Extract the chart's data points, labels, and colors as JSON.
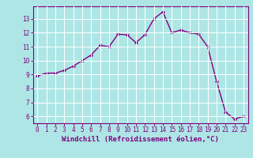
{
  "x": [
    0,
    1,
    2,
    3,
    4,
    5,
    6,
    7,
    8,
    9,
    10,
    11,
    12,
    13,
    14,
    15,
    16,
    17,
    18,
    19,
    20,
    21,
    22,
    23
  ],
  "y": [
    8.9,
    9.1,
    9.1,
    9.3,
    9.6,
    10.0,
    10.4,
    11.1,
    11.0,
    11.9,
    11.85,
    11.3,
    11.85,
    13.0,
    13.5,
    12.0,
    12.2,
    12.0,
    11.9,
    11.0,
    8.5,
    6.3,
    5.8,
    6.0
  ],
  "line_color": "#7f007f",
  "marker": "D",
  "marker_size": 2.0,
  "bg_color": "#aee6e6",
  "grid_color": "#ffffff",
  "xlabel": "Windchill (Refroidissement éolien,°C)",
  "xlabel_color": "#7f007f",
  "tick_color": "#7f007f",
  "spine_color": "#7f007f",
  "ylim": [
    5.5,
    13.9
  ],
  "xlim": [
    -0.5,
    23.5
  ],
  "yticks": [
    6,
    7,
    8,
    9,
    10,
    11,
    12,
    13
  ],
  "xticks": [
    0,
    1,
    2,
    3,
    4,
    5,
    6,
    7,
    8,
    9,
    10,
    11,
    12,
    13,
    14,
    15,
    16,
    17,
    18,
    19,
    20,
    21,
    22,
    23
  ],
  "tick_fontsize": 5.5,
  "xlabel_fontsize": 6.5,
  "linewidth": 1.0
}
